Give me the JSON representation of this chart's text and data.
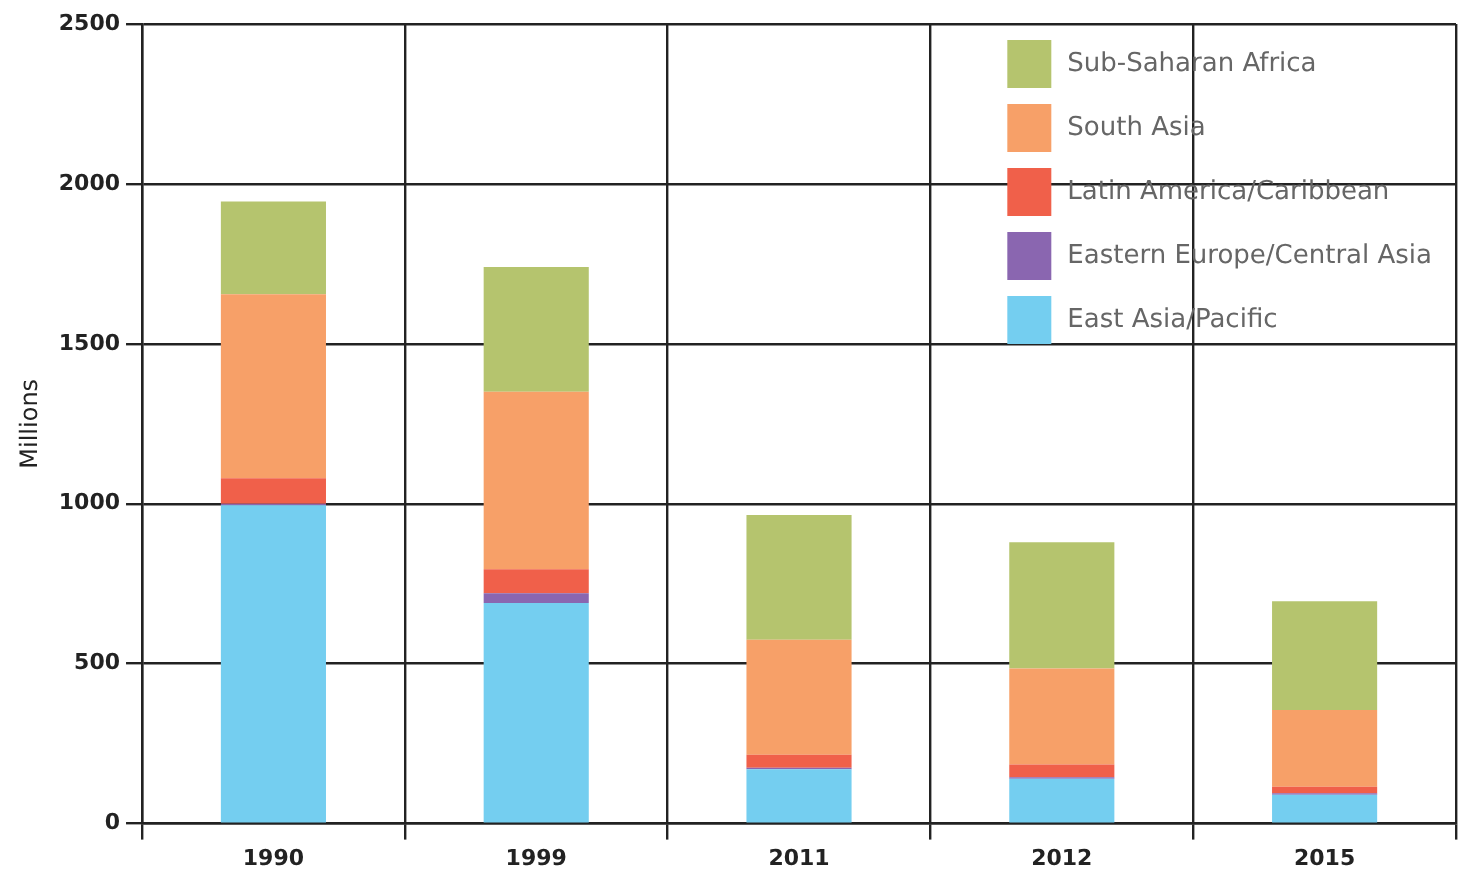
{
  "chart_data": {
    "type": "bar",
    "stacked": true,
    "ylabel": "Millions",
    "categories": [
      "1990",
      "1999",
      "2011",
      "2012",
      "2015"
    ],
    "series": [
      {
        "name": "East Asia/Pacific",
        "color": "#74cef0",
        "values": [
          995,
          690,
          170,
          140,
          90
        ]
      },
      {
        "name": "Eastern Europe/Central Asia",
        "color": "#8a66b0",
        "values": [
          5,
          30,
          5,
          5,
          5
        ]
      },
      {
        "name": "Latin America/Caribbean",
        "color": "#f0604a",
        "values": [
          80,
          75,
          40,
          40,
          20
        ]
      },
      {
        "name": "South Asia",
        "color": "#f7a068",
        "values": [
          575,
          555,
          360,
          300,
          240
        ]
      },
      {
        "name": "Sub-Saharan Africa",
        "color": "#b5c46e",
        "values": [
          290,
          390,
          390,
          395,
          340
        ]
      }
    ],
    "ylim": [
      0,
      2500
    ],
    "yticks": [
      0,
      500,
      1000,
      1500,
      2000,
      2500
    ],
    "grid": true,
    "legend": "top right"
  }
}
